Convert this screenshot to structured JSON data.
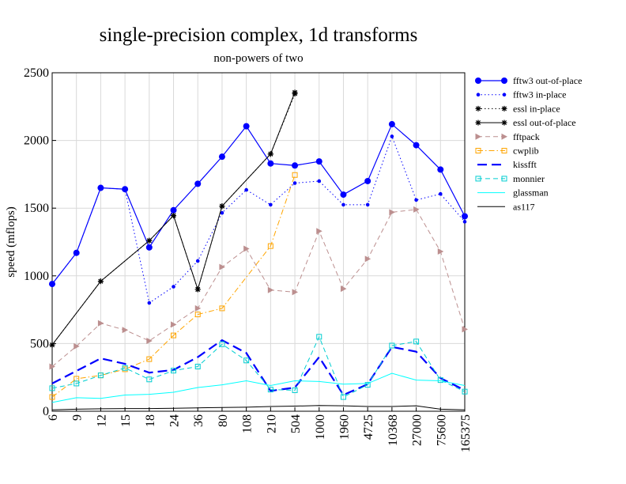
{
  "chart_data": {
    "type": "line",
    "title": "single-precision complex, 1d transforms",
    "subtitle": "non-powers of two",
    "xlabel": "",
    "ylabel": "speed (mflops)",
    "ylim": [
      0,
      2500
    ],
    "yticks": [
      "0",
      "500",
      "1000",
      "1500",
      "2000",
      "2500"
    ],
    "grid": true,
    "legend_position": "right",
    "categories": [
      "6",
      "9",
      "12",
      "15",
      "18",
      "24",
      "36",
      "80",
      "108",
      "210",
      "504",
      "1000",
      "1960",
      "4725",
      "10368",
      "27000",
      "75600",
      "165375"
    ],
    "series": [
      {
        "name": "fftw3 out-of-place",
        "color": "#0000ff",
        "dash": "solid",
        "marker": "circle-big",
        "values": [
          940,
          1170,
          1650,
          1640,
          1210,
          1485,
          1680,
          1880,
          2105,
          1830,
          1815,
          1845,
          1600,
          1700,
          2120,
          1965,
          1785,
          1440
        ]
      },
      {
        "name": "fftw3 in-place",
        "color": "#0000ff",
        "dash": "dot",
        "marker": "circle-small",
        "values": [
          940,
          1170,
          1650,
          1640,
          800,
          920,
          1110,
          1465,
          1635,
          1525,
          1685,
          1700,
          1525,
          1525,
          2030,
          1560,
          1605,
          1400
        ]
      },
      {
        "name": "essl in-place",
        "color": "#000000",
        "dash": "dot",
        "marker": "star",
        "values": [
          490,
          null,
          960,
          null,
          1260,
          1445,
          900,
          1515,
          null,
          1900,
          2345,
          null,
          null,
          null,
          null,
          null,
          null,
          null
        ]
      },
      {
        "name": "essl out-of-place",
        "color": "#000000",
        "dash": "solid",
        "marker": "star",
        "values": [
          490,
          null,
          960,
          null,
          1260,
          1445,
          900,
          1515,
          null,
          1900,
          2355,
          null,
          null,
          null,
          null,
          null,
          null,
          null
        ]
      },
      {
        "name": "fftpack",
        "color": "#bc8f8f",
        "dash": "dash",
        "marker": "triangle",
        "values": [
          330,
          480,
          650,
          600,
          520,
          640,
          760,
          1065,
          1200,
          895,
          880,
          1330,
          905,
          1125,
          1470,
          1490,
          1180,
          605
        ]
      },
      {
        "name": "cwplib",
        "color": "#ffa500",
        "dash": "dashdot",
        "marker": "square",
        "values": [
          105,
          240,
          265,
          310,
          385,
          560,
          715,
          760,
          null,
          1220,
          1745,
          null,
          null,
          null,
          null,
          null,
          null,
          null
        ]
      },
      {
        "name": "kissfft",
        "color": "#0000ff",
        "dash": "longdash",
        "marker": "none",
        "values": [
          205,
          null,
          390,
          350,
          285,
          305,
          400,
          525,
          430,
          150,
          175,
          400,
          120,
          200,
          475,
          440,
          245,
          155
        ]
      },
      {
        "name": "monnier",
        "color": "#00ced1",
        "dash": "dash",
        "marker": "square",
        "values": [
          170,
          205,
          265,
          320,
          235,
          300,
          330,
          495,
          375,
          160,
          155,
          550,
          105,
          195,
          485,
          515,
          230,
          145
        ]
      },
      {
        "name": "glassman",
        "color": "#00ffff",
        "dash": "solid",
        "marker": "none",
        "values": [
          65,
          100,
          95,
          120,
          125,
          140,
          175,
          195,
          225,
          190,
          225,
          220,
          200,
          205,
          280,
          230,
          225,
          190
        ]
      },
      {
        "name": "as117",
        "color": "#000000",
        "dash": "solid",
        "marker": "none",
        "values": [
          10,
          15,
          18,
          20,
          20,
          22,
          25,
          28,
          30,
          35,
          38,
          42,
          40,
          35,
          35,
          40,
          15,
          10
        ]
      }
    ]
  }
}
